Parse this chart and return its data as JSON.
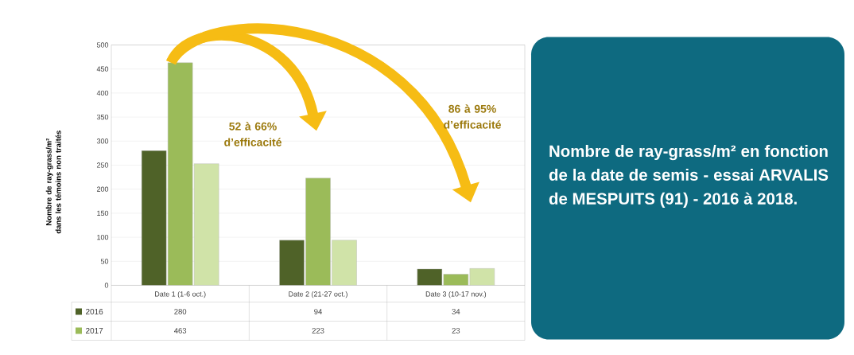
{
  "chart_data": {
    "type": "bar",
    "title": "Nombre de ray-grass/m² en fonction de la date de semis - essai ARVALIS de MESPUITS (91) - 2016 à 2018.",
    "ylabel": "Nombre de ray-grass/m² dans les témoins non traités",
    "categories": [
      "Date 1 (1-6 oct.)",
      "Date 2 (21-27 oct.)",
      "Date 3 (10-17 nov.)"
    ],
    "series": [
      {
        "name": "2016",
        "color": "#4f6228",
        "values": [
          280,
          94,
          34
        ],
        "value_labels": [
          "280",
          "94",
          "34"
        ]
      },
      {
        "name": "2017",
        "color": "#9bbb59",
        "values": [
          463,
          223,
          23
        ],
        "value_labels": [
          "463",
          "223",
          "23"
        ]
      },
      {
        "color": "#d0e3a8",
        "values": [
          253,
          94,
          35
        ]
      }
    ],
    "ylim": [
      0,
      500
    ],
    "yticks": [
      0,
      50,
      100,
      150,
      200,
      250,
      300,
      350,
      400,
      450,
      500
    ],
    "grid": "y",
    "legend": "bottom",
    "annotations": [
      "52 à 66% d’efficacité",
      "86 à 95% d’efficacité"
    ]
  }
}
